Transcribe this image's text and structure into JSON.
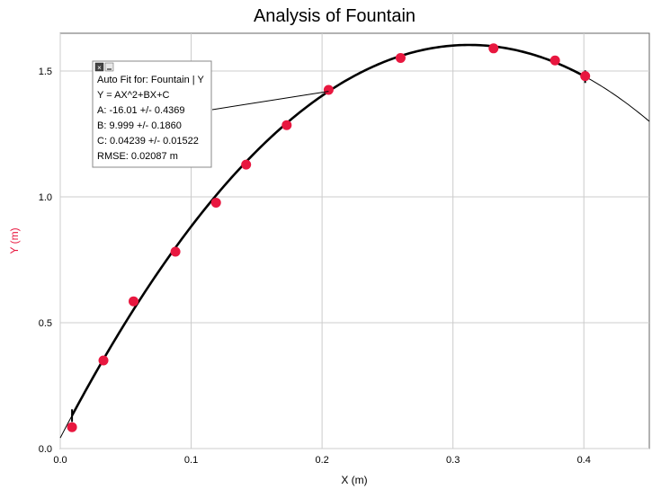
{
  "chart_data": {
    "type": "scatter",
    "title": "Analysis of Fountain",
    "xlabel": "X (m)",
    "ylabel": "Y (m)",
    "xlim": [
      0.0,
      0.45
    ],
    "ylim": [
      0.0,
      1.65
    ],
    "xticks": [
      "0.0",
      "0.1",
      "0.2",
      "0.3",
      "0.4"
    ],
    "yticks": [
      "0.0",
      "0.5",
      "1.0",
      "1.5"
    ],
    "xtick_values": [
      0.0,
      0.1,
      0.2,
      0.3,
      0.4
    ],
    "ytick_values": [
      0.0,
      0.5,
      1.0,
      1.5
    ],
    "grid": true,
    "series": [
      {
        "points": [
          {
            "x": 0.009,
            "y": 0.085
          },
          {
            "x": 0.033,
            "y": 0.35
          },
          {
            "x": 0.056,
            "y": 0.585
          },
          {
            "x": 0.088,
            "y": 0.782
          },
          {
            "x": 0.119,
            "y": 0.977
          },
          {
            "x": 0.142,
            "y": 1.128
          },
          {
            "x": 0.173,
            "y": 1.285
          },
          {
            "x": 0.205,
            "y": 1.425
          },
          {
            "x": 0.26,
            "y": 1.552
          },
          {
            "x": 0.331,
            "y": 1.59
          },
          {
            "x": 0.378,
            "y": 1.542
          },
          {
            "x": 0.401,
            "y": 1.48
          }
        ]
      }
    ],
    "fit": {
      "model": "quadratic",
      "A": -16.01,
      "B": 9.999,
      "C": 0.04239,
      "fit_range": [
        0.009,
        0.401
      ],
      "header": "Auto Fit for: Fountain | Y",
      "equation": "Y = AX^2+BX+C",
      "A_text": "A: -16.01 +/- 0.4369",
      "B_text": "B: 9.999 +/- 0.1860",
      "C_text": "C: 0.04239 +/- 0.01522",
      "rmse_text": "RMSE: 0.02087 m",
      "anchor_x": 0.205
    },
    "colors": {
      "point": "#e8173f",
      "ylabel": "#e8173f",
      "fit_line": "#000000",
      "grid": "#cccccc"
    }
  }
}
